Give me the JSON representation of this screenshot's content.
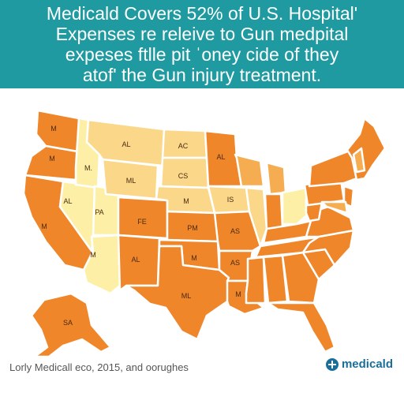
{
  "header": {
    "lines": [
      "Medicald Covers 52% of U.S. Hospital'",
      "Expenses re releive to Gun medpital",
      "expeses ftlle pit ˈoney cide of they",
      "atof' the Gun injury treatment."
    ]
  },
  "colors": {
    "banner": "#1f9aa0",
    "orange": "#f0862a",
    "medium": "#f6ad52",
    "light": "#fbd78a",
    "pale": "#fdf0a6",
    "border": "#ffffff"
  },
  "map": {
    "labels": {
      "wa": "M",
      "or": "M",
      "ca": "M",
      "id": "M.",
      "nv": "AL",
      "ut": "PA",
      "az": "M",
      "mt": "AL",
      "wy": "ML",
      "co": "FE",
      "nm": "AL",
      "nd": "AC",
      "sd": "CS",
      "ne": "M",
      "ks": "PM",
      "ok": "M",
      "tx": "ML",
      "mn": "AL",
      "ia": "IS",
      "mo": "AS",
      "ar": "AS",
      "la": "M",
      "ak": "SA"
    }
  },
  "footer": {
    "source": "Lorly Medicall eco, 2015, and oorughes",
    "brand": "medicald",
    "brand_icon": "cross-icon"
  }
}
